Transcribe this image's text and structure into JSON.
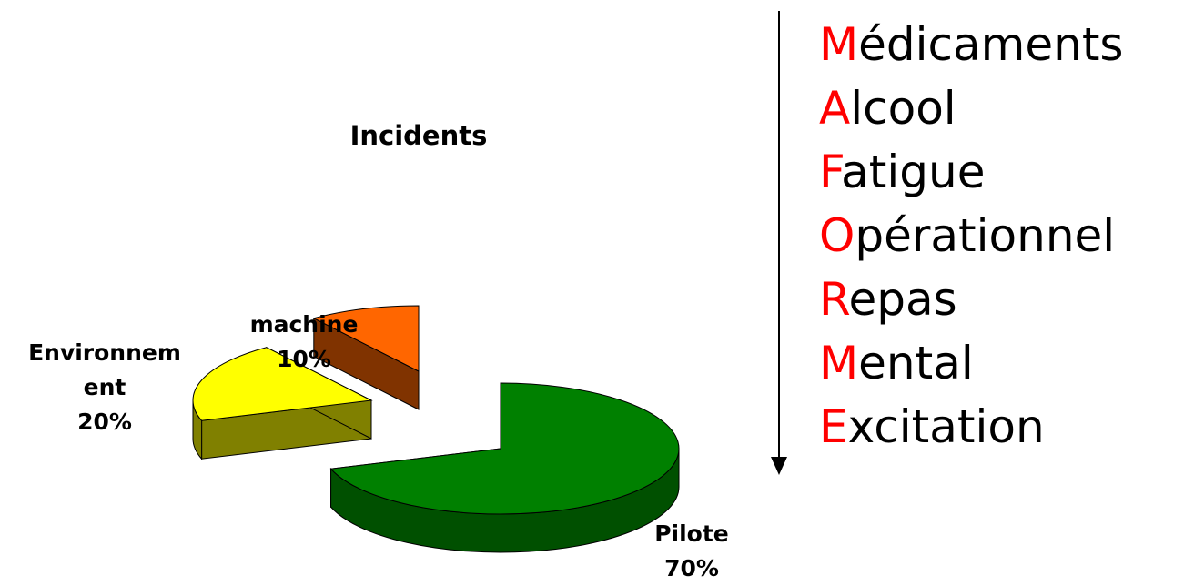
{
  "chart_data": {
    "type": "pie",
    "title": "Incidents",
    "three_d": true,
    "slices": [
      {
        "name": "Pilote",
        "value": 70,
        "value_label": "70%",
        "color": "#008000",
        "side_color": "#005000",
        "exploded": true
      },
      {
        "name": "Environnement",
        "display_name": "Environnem\nent",
        "value": 20,
        "value_label": "20%",
        "color": "#ffff00",
        "side_color": "#808000",
        "exploded": true
      },
      {
        "name": "machine",
        "value": 10,
        "value_label": "10%",
        "color": "#ff6600",
        "side_color": "#803300",
        "exploded": true
      }
    ]
  },
  "labels": {
    "environnement": "Environnem\nent\n20%",
    "machine": "machine\n10%",
    "pilote": "Pilote\n70%"
  },
  "acronym": [
    {
      "initial": "M",
      "rest": "édicaments"
    },
    {
      "initial": "A",
      "rest": "lcool"
    },
    {
      "initial": "F",
      "rest": "atigue"
    },
    {
      "initial": "O",
      "rest": "pérationnel"
    },
    {
      "initial": "R",
      "rest": "epas"
    },
    {
      "initial": "M",
      "rest": "ental"
    },
    {
      "initial": "E",
      "rest": "xcitation"
    }
  ],
  "colors": {
    "initial": "#ff0000",
    "text": "#000000",
    "arrow": "#000000"
  }
}
